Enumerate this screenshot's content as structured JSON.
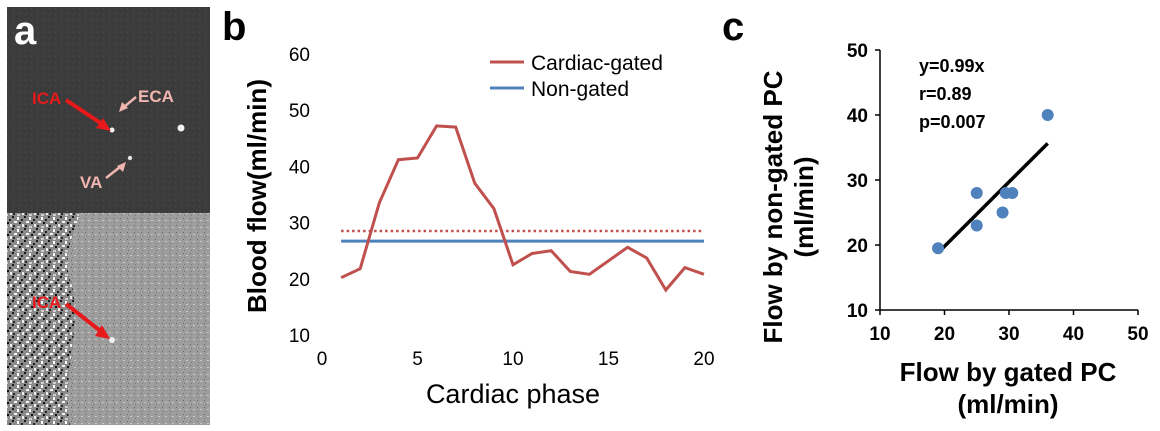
{
  "panels": {
    "a": "a",
    "b": "b",
    "c": "c"
  },
  "panel_a": {
    "top_labels": [
      "ICA",
      "ECA",
      "VA"
    ],
    "bottom_labels": [
      "ICA"
    ],
    "colors": {
      "ica": "#e8191b",
      "eca": "#f2b6b0",
      "va": "#f2b6b0"
    }
  },
  "chart_data": [
    {
      "type": "line",
      "panel": "b",
      "title": "",
      "xlabel": "Cardiac phase",
      "ylabel": "Blood flow(ml/min)",
      "xlim": [
        0,
        20
      ],
      "ylim": [
        10,
        60
      ],
      "xticks": [
        0,
        5,
        10,
        15,
        20
      ],
      "yticks": [
        10,
        20,
        30,
        40,
        50,
        60
      ],
      "x": [
        1,
        2,
        3,
        4,
        5,
        6,
        7,
        8,
        9,
        10,
        11,
        12,
        13,
        14,
        15,
        16,
        17,
        18,
        19,
        20
      ],
      "series": [
        {
          "name": "Cardiac-gated",
          "color": "#c0504d",
          "values": [
            20.2,
            21.8,
            33.5,
            41.2,
            41.5,
            47.2,
            47.0,
            37.0,
            32.5,
            22.5,
            24.5,
            25.0,
            21.3,
            20.8,
            23.2,
            25.6,
            23.7,
            18.0,
            22.0,
            20.8
          ]
        },
        {
          "name": "Non-gated",
          "color": "#4f81bd",
          "values": [
            26.7,
            26.7,
            26.7,
            26.7,
            26.7,
            26.7,
            26.7,
            26.7,
            26.7,
            26.7,
            26.7,
            26.7,
            26.7,
            26.7,
            26.7,
            26.7,
            26.7,
            26.7,
            26.7,
            26.7
          ]
        }
      ],
      "reference_lines": [
        {
          "name": "gated mean",
          "y": 28.5,
          "color": "#c0504d",
          "style": "dotted"
        }
      ],
      "legend_position": "top-right"
    },
    {
      "type": "scatter",
      "panel": "c",
      "title": "",
      "xlabel": "Flow by gated PC",
      "xlabel_unit": "(ml/min)",
      "ylabel": "Flow by non-gated PC",
      "ylabel_unit": "(ml/min)",
      "xlim": [
        10,
        50
      ],
      "ylim": [
        10,
        50
      ],
      "xticks": [
        10,
        20,
        30,
        40,
        50
      ],
      "yticks": [
        10,
        20,
        30,
        40,
        50
      ],
      "points": [
        {
          "x": 19,
          "y": 19.5
        },
        {
          "x": 25,
          "y": 23
        },
        {
          "x": 25,
          "y": 28
        },
        {
          "x": 29,
          "y": 25
        },
        {
          "x": 29.5,
          "y": 28
        },
        {
          "x": 30.5,
          "y": 28
        },
        {
          "x": 36,
          "y": 40
        }
      ],
      "point_color": "#4f81bd",
      "fit": {
        "slope": 0.99,
        "x_range": [
          19,
          36
        ],
        "color": "#000000"
      },
      "annotations": [
        "y=0.99x",
        "r=0.89",
        "p=0.007"
      ]
    }
  ]
}
